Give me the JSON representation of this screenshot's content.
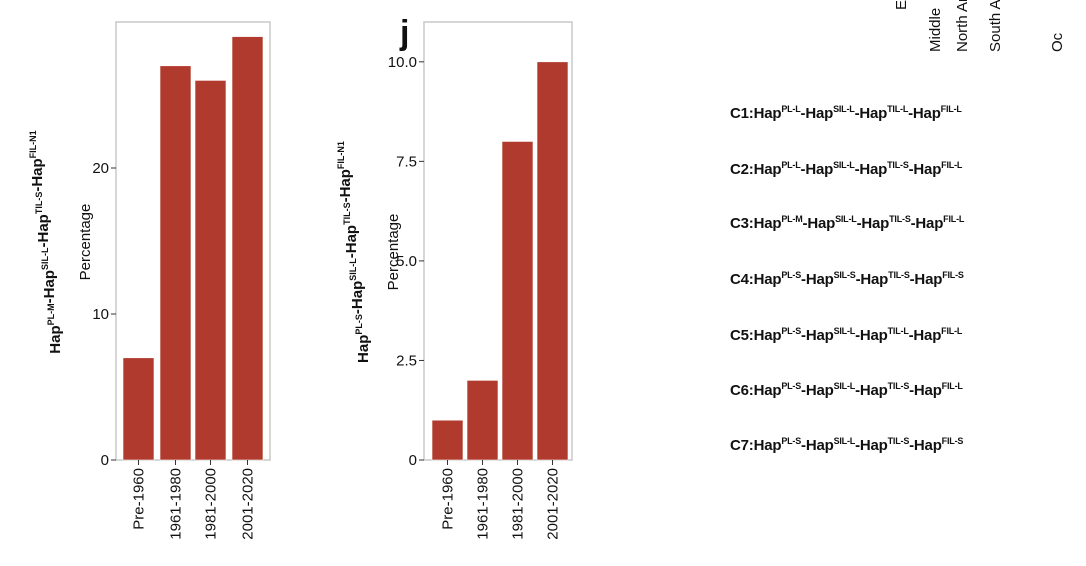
{
  "chart_data": [
    {
      "type": "bar",
      "panel_label": "",
      "ylabel": "Percentage",
      "ylabel_genotype": [
        {
          "base": "Hap",
          "sup": "PL-M"
        },
        {
          "base": "-Hap",
          "sup": "SIL-L"
        },
        {
          "base": "-Hap",
          "sup": "TIL-S"
        },
        {
          "base": "-Hap",
          "sup": "FIL-N1"
        }
      ],
      "categories": [
        "Pre-1960",
        "1961-1980",
        "1981-2000",
        "2001-2020"
      ],
      "values": [
        7,
        27,
        26,
        29
      ],
      "ylim": [
        0,
        30
      ],
      "yticks": [
        0,
        10,
        20
      ],
      "ytick_labels": [
        "0",
        "10",
        "20"
      ],
      "color": "#b03a2e"
    },
    {
      "type": "bar",
      "panel_label": "j",
      "ylabel": "Percentage",
      "ylabel_genotype": [
        {
          "base": "Hap",
          "sup": "PL-S"
        },
        {
          "base": "-Hap",
          "sup": "SIL-L"
        },
        {
          "base": "-Hap",
          "sup": "TIL-S"
        },
        {
          "base": "-Hap",
          "sup": "FIL-N1"
        }
      ],
      "categories": [
        "Pre-1960",
        "1961-1980",
        "1981-2000",
        "2001-2020"
      ],
      "values": [
        1,
        2,
        8,
        10
      ],
      "ylim": [
        0,
        11
      ],
      "yticks": [
        0,
        2.5,
        5.0,
        7.5,
        10.0
      ],
      "ytick_labels": [
        "0",
        "2.5",
        "5.0",
        "7.5",
        "10.0"
      ],
      "color": "#b03a2e"
    }
  ],
  "region_labels": [
    "Middle",
    "North An",
    "South An",
    "Oc"
  ],
  "region_partial": "E",
  "combinations": [
    {
      "label": "C1",
      "parts": [
        {
          "base": ":Hap",
          "sup": "PL-L"
        },
        {
          "base": "-Hap",
          "sup": "SIL-L"
        },
        {
          "base": "-Hap",
          "sup": "TIL-L"
        },
        {
          "base": "-Hap",
          "sup": "FIL-L"
        }
      ]
    },
    {
      "label": "C2",
      "parts": [
        {
          "base": ":Hap",
          "sup": "PL-L"
        },
        {
          "base": "-Hap",
          "sup": "SIL-L"
        },
        {
          "base": "-Hap",
          "sup": "TIL-S"
        },
        {
          "base": "-Hap",
          "sup": "FIL-L"
        }
      ]
    },
    {
      "label": "C3",
      "parts": [
        {
          "base": ":Hap",
          "sup": "PL-M"
        },
        {
          "base": "-Hap",
          "sup": "SIL-L"
        },
        {
          "base": "-Hap",
          "sup": "TIL-S"
        },
        {
          "base": "-Hap",
          "sup": "FIL-L"
        }
      ]
    },
    {
      "label": "C4",
      "parts": [
        {
          "base": ":Hap",
          "sup": "PL-S"
        },
        {
          "base": "-Hap",
          "sup": "SIL-S"
        },
        {
          "base": "-Hap",
          "sup": "TIL-S"
        },
        {
          "base": "-Hap",
          "sup": "FIL-S"
        }
      ]
    },
    {
      "label": "C5",
      "parts": [
        {
          "base": ":Hap",
          "sup": "PL-S"
        },
        {
          "base": "-Hap",
          "sup": "SIL-L"
        },
        {
          "base": "-Hap",
          "sup": "TIL-L"
        },
        {
          "base": "-Hap",
          "sup": "FIL-L"
        }
      ]
    },
    {
      "label": "C6",
      "parts": [
        {
          "base": ":Hap",
          "sup": "PL-S"
        },
        {
          "base": "-Hap",
          "sup": "SIL-L"
        },
        {
          "base": "-Hap",
          "sup": "TIL-S"
        },
        {
          "base": "-Hap",
          "sup": "FIL-L"
        }
      ]
    },
    {
      "label": "C7",
      "parts": [
        {
          "base": ":Hap",
          "sup": "PL-S"
        },
        {
          "base": "-Hap",
          "sup": "SIL-L"
        },
        {
          "base": "-Hap",
          "sup": "TIL-S"
        },
        {
          "base": "-Hap",
          "sup": "FIL-S"
        }
      ]
    }
  ]
}
